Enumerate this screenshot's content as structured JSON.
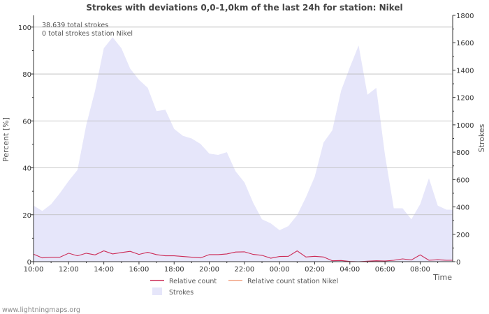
{
  "chart_data": {
    "type": "area",
    "title": "Strokes with deviations 0,0-1,0km of the last 24h for station: Nikel",
    "xlabel": "Time",
    "ylabel_left": "Percent   [%]",
    "ylabel_right": "Strokes",
    "ylim_left": [
      0,
      105
    ],
    "ylim_right": [
      0,
      1800
    ],
    "yticks_left": [
      0,
      20,
      40,
      60,
      80,
      100
    ],
    "yticks_right": [
      0,
      200,
      400,
      600,
      800,
      1000,
      1200,
      1400,
      1600,
      1800
    ],
    "xlim_hours": [
      10,
      33.85
    ],
    "xticks": [
      {
        "hour": 10,
        "label": "10:00"
      },
      {
        "hour": 12,
        "label": "12:00"
      },
      {
        "hour": 14,
        "label": "14:00"
      },
      {
        "hour": 16,
        "label": "16:00"
      },
      {
        "hour": 18,
        "label": "18:00"
      },
      {
        "hour": 20,
        "label": "20:00"
      },
      {
        "hour": 22,
        "label": "22:00"
      },
      {
        "hour": 24,
        "label": "00:00"
      },
      {
        "hour": 26,
        "label": "02:00"
      },
      {
        "hour": 28,
        "label": "04:00"
      },
      {
        "hour": 30,
        "label": "06:00"
      },
      {
        "hour": 32,
        "label": "08:00"
      }
    ],
    "annotations": [
      "38.639 total strokes",
      "0 total strokes station Nikel"
    ],
    "series": [
      {
        "name": "Strokes",
        "axis": "right",
        "color": "#e6e6fa",
        "x": [
          10,
          10.5,
          11,
          11.5,
          12,
          12.5,
          13,
          13.5,
          14,
          14.5,
          15,
          15.5,
          16,
          16.5,
          17,
          17.5,
          18,
          18.5,
          19,
          19.5,
          20,
          20.5,
          21,
          21.5,
          22,
          22.5,
          23,
          23.5,
          24,
          24.5,
          25,
          25.5,
          26,
          26.5,
          27,
          27.5,
          28,
          28.5,
          29,
          29.5,
          30,
          30.5,
          31,
          31.5,
          32,
          32.5,
          33,
          33.5,
          33.85
        ],
        "values": [
          410,
          370,
          420,
          500,
          590,
          670,
          1000,
          1250,
          1560,
          1640,
          1560,
          1410,
          1330,
          1270,
          1100,
          1110,
          970,
          920,
          900,
          860,
          790,
          780,
          800,
          660,
          580,
          430,
          310,
          280,
          230,
          260,
          340,
          470,
          620,
          870,
          960,
          1250,
          1420,
          1580,
          1220,
          1270,
          780,
          390,
          390,
          310,
          420,
          610,
          410,
          380,
          380
        ]
      },
      {
        "name": "Relative count",
        "axis": "left",
        "color": "#cc2a55",
        "x": [
          10,
          10.5,
          11,
          11.5,
          12,
          12.5,
          13,
          13.5,
          14,
          14.5,
          15,
          15.5,
          16,
          16.5,
          17,
          17.5,
          18,
          18.5,
          19,
          19.5,
          20,
          20.5,
          21,
          21.5,
          22,
          22.5,
          23,
          23.5,
          24,
          24.5,
          25,
          25.5,
          26,
          26.5,
          27,
          27.5,
          28,
          28.5,
          29,
          29.5,
          30,
          30.5,
          31,
          31.5,
          32,
          32.5,
          33,
          33.5,
          33.85
        ],
        "values": [
          3.2,
          1.6,
          1.9,
          1.9,
          3.6,
          2.5,
          3.6,
          2.9,
          4.6,
          3.3,
          3.9,
          4.4,
          3.1,
          4.0,
          3.0,
          2.5,
          2.5,
          2.2,
          1.9,
          1.6,
          3.0,
          3.0,
          3.3,
          4.1,
          4.2,
          3.1,
          2.7,
          1.5,
          2.2,
          2.3,
          4.6,
          2.0,
          2.3,
          2.0,
          0.4,
          0.5,
          0.1,
          0.0,
          0.2,
          0.4,
          0.3,
          0.6,
          1.2,
          0.7,
          2.9,
          0.6,
          0.8,
          0.6,
          0.6
        ]
      },
      {
        "name": "Relative count station Nikel",
        "axis": "left",
        "color": "#f0a080",
        "x": [],
        "values": []
      }
    ],
    "legend": {
      "placement": "bottom",
      "entries": [
        {
          "label": "Relative count",
          "color": "#cc2a55",
          "style": "line"
        },
        {
          "label": "Relative count station Nikel",
          "color": "#f0a080",
          "style": "line"
        },
        {
          "label": "Strokes",
          "color": "#e6e6fa",
          "style": "box"
        }
      ]
    },
    "footer": "www.lightningmaps.org"
  }
}
